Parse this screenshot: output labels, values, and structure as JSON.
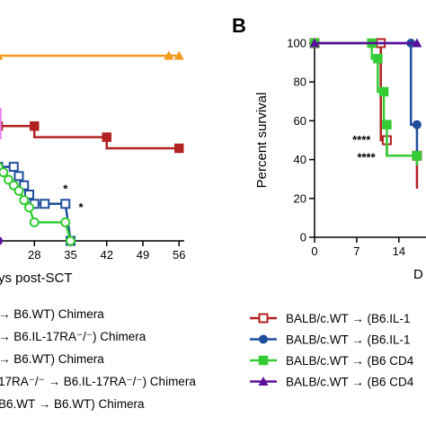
{
  "panel_b_label": "B",
  "colors": {
    "red": "#b22222",
    "blue": "#1f4e9c",
    "green": "#33cc33",
    "purple": "#5b0f9e",
    "orange": "#f39a1c",
    "pink": "#ee82ee"
  },
  "chart_data": [
    {
      "panel": "A",
      "type": "line",
      "xlabel": "ys post-SCT",
      "ylabel": "",
      "x_ticks": [
        28,
        35,
        42,
        49,
        56
      ],
      "x_tick_labels": [
        "28",
        "35",
        "42",
        "49",
        "56"
      ],
      "ylim": [
        0,
        100
      ],
      "series": [
        {
          "color_key": "orange",
          "marker": "triangle",
          "points": [
            [
              21,
              100
            ],
            [
              54,
              100
            ],
            [
              56,
              100
            ]
          ]
        },
        {
          "color_key": "red",
          "marker": "square-filled",
          "points": [
            [
              21,
              62
            ],
            [
              28,
              62
            ],
            [
              28,
              56
            ],
            [
              42,
              56
            ],
            [
              42,
              50
            ],
            [
              56,
              50
            ]
          ]
        },
        {
          "color_key": "blue",
          "marker": "square-open",
          "points": [
            [
              21,
              40
            ],
            [
              24,
              40
            ],
            [
              25,
              35
            ],
            [
              26,
              30
            ],
            [
              27,
              25
            ],
            [
              28,
              20
            ],
            [
              30,
              20
            ],
            [
              34,
              20
            ],
            [
              35,
              0
            ]
          ]
        },
        {
          "color_key": "green",
          "marker": "circle-open",
          "points": [
            [
              21,
              40
            ],
            [
              22,
              37
            ],
            [
              23,
              33
            ],
            [
              24,
              30
            ],
            [
              25,
              27
            ],
            [
              26,
              22
            ],
            [
              27,
              18
            ],
            [
              28,
              10
            ],
            [
              34,
              10
            ],
            [
              35,
              0
            ]
          ]
        },
        {
          "color_key": "purple",
          "marker": "circle-filled",
          "points": [
            [
              21,
              0
            ]
          ]
        }
      ],
      "annotations": [
        {
          "text": "*",
          "x": 34,
          "y": 28
        },
        {
          "text": "*",
          "x": 37,
          "y": 18
        }
      ],
      "legend_position": "bottom",
      "legend": [
        {
          "marker": "none",
          "text": "→ B6.WT) Chimera"
        },
        {
          "marker": "none",
          "text": "→ B6.IL-17RA⁻/⁻) Chimera"
        },
        {
          "marker": "none",
          "text": "→ B6.WT) Chimera"
        },
        {
          "marker": "none",
          "text": "17RA⁻/⁻ → B6.IL-17RA⁻/⁻) Chimera"
        },
        {
          "marker": "none",
          "text": "B6.WT → B6.WT) Chimera"
        }
      ]
    },
    {
      "panel": "B",
      "type": "line",
      "xlabel": "D",
      "ylabel": "Percent survival",
      "x_ticks": [
        0,
        7,
        14
      ],
      "x_tick_labels": [
        "0",
        "7",
        "14"
      ],
      "y_ticks": [
        0,
        20,
        40,
        60,
        80,
        100
      ],
      "y_tick_labels": [
        "0",
        "20",
        "40",
        "60",
        "80",
        "100"
      ],
      "ylim": [
        0,
        100
      ],
      "series": [
        {
          "color_key": "red",
          "marker": "square-open",
          "points": [
            [
              0,
              100
            ],
            [
              11,
              100
            ],
            [
              11,
              50
            ],
            [
              12,
              50
            ],
            [
              12,
              42
            ],
            [
              17,
              42
            ],
            [
              17,
              25
            ]
          ]
        },
        {
          "color_key": "blue",
          "marker": "circle-filled",
          "points": [
            [
              0,
              100
            ],
            [
              16,
              100
            ],
            [
              16,
              58
            ],
            [
              17,
              58
            ],
            [
              17,
              40
            ]
          ]
        },
        {
          "color_key": "green",
          "marker": "square-filled",
          "points": [
            [
              0,
              100
            ],
            [
              9.5,
              100
            ],
            [
              9.5,
              92
            ],
            [
              10.5,
              92
            ],
            [
              10.5,
              75
            ],
            [
              11.5,
              75
            ],
            [
              11.5,
              58
            ],
            [
              12,
              58
            ],
            [
              12,
              42
            ],
            [
              17,
              42
            ],
            [
              17,
              37
            ]
          ]
        },
        {
          "color_key": "purple",
          "marker": "triangle",
          "points": [
            [
              0,
              100
            ],
            [
              17,
              100
            ]
          ]
        }
      ],
      "annotations": [
        {
          "text": "****",
          "x": 9.3,
          "y": 50
        },
        {
          "text": "****",
          "x": 10.1,
          "y": 41
        }
      ],
      "legend_position": "bottom",
      "legend": [
        {
          "color_key": "red",
          "marker": "square-open",
          "text": "BALB/c.WT → (B6.IL-1"
        },
        {
          "color_key": "blue",
          "marker": "circle-filled",
          "text": "BALB/c.WT → (B6.IL-1"
        },
        {
          "color_key": "green",
          "marker": "square-filled",
          "text": "BALB/c.WT → (B6 CD4"
        },
        {
          "color_key": "purple",
          "marker": "triangle",
          "text": "BALB/c.WT → (B6 CD4"
        }
      ]
    }
  ]
}
